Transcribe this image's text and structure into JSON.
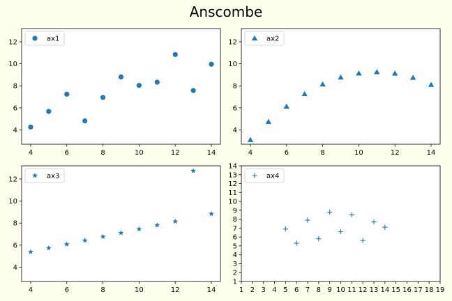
{
  "figure": {
    "title": "Anscombe",
    "background": "#ffffee"
  },
  "marker_color": "#1f77b4",
  "chart_data": [
    {
      "type": "scatter",
      "marker": "circle",
      "legend": "ax1",
      "legend_loc": "upper-left",
      "x": [
        10,
        8,
        13,
        9,
        11,
        14,
        6,
        4,
        12,
        7,
        5
      ],
      "y": [
        8.04,
        6.95,
        7.58,
        8.81,
        8.33,
        9.96,
        7.24,
        4.26,
        10.84,
        4.82,
        5.68
      ],
      "xlim": [
        3.5,
        14.5
      ],
      "ylim": [
        2.7,
        13.2
      ],
      "xticks": [
        4,
        6,
        8,
        10,
        12,
        14
      ],
      "yticks": [
        4,
        6,
        8,
        10,
        12
      ]
    },
    {
      "type": "scatter",
      "marker": "triangle",
      "legend": "ax2",
      "legend_loc": "upper-left",
      "x": [
        10,
        8,
        13,
        9,
        11,
        14,
        6,
        4,
        12,
        7,
        5
      ],
      "y": [
        9.14,
        8.14,
        8.74,
        8.77,
        9.26,
        8.1,
        6.13,
        3.1,
        9.13,
        7.26,
        4.74
      ],
      "xlim": [
        3.5,
        14.5
      ],
      "ylim": [
        2.7,
        13.2
      ],
      "xticks": [
        4,
        6,
        8,
        10,
        12,
        14
      ],
      "yticks": [
        4,
        6,
        8,
        10,
        12
      ]
    },
    {
      "type": "scatter",
      "marker": "star",
      "legend": "ax3",
      "legend_loc": "upper-left",
      "x": [
        10,
        8,
        13,
        9,
        11,
        14,
        6,
        4,
        12,
        7,
        5
      ],
      "y": [
        7.46,
        6.77,
        12.74,
        7.11,
        7.81,
        8.84,
        6.08,
        5.39,
        8.15,
        6.42,
        5.73
      ],
      "xlim": [
        3.5,
        14.5
      ],
      "ylim": [
        2.7,
        13.2
      ],
      "xticks": [
        4,
        6,
        8,
        10,
        12,
        14
      ],
      "yticks": [
        4,
        6,
        8,
        10,
        12
      ]
    },
    {
      "type": "scatter",
      "marker": "plus",
      "legend": "ax4",
      "legend_loc": "upper-left",
      "x": [
        5,
        6,
        7,
        8,
        9,
        10,
        11,
        12,
        13,
        14
      ],
      "y": [
        6.9,
        5.3,
        7.9,
        5.8,
        8.8,
        6.6,
        8.5,
        5.6,
        7.7,
        7.1
      ],
      "xlim": [
        1,
        19
      ],
      "ylim": [
        1,
        14
      ],
      "xticks": [
        1,
        2,
        3,
        4,
        5,
        6,
        7,
        8,
        9,
        10,
        11,
        12,
        13,
        14,
        15,
        16,
        17,
        18,
        19
      ],
      "yticks": [
        1,
        2,
        3,
        4,
        5,
        6,
        7,
        8,
        9,
        10,
        11,
        12,
        13,
        14
      ]
    }
  ]
}
